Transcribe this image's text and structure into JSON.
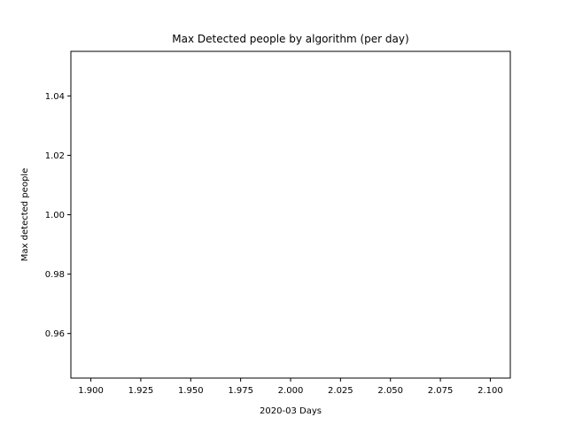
{
  "chart_data": {
    "type": "line",
    "title": "Max Detected people by algorithm (per day)",
    "xlabel": "2020-03 Days",
    "ylabel": "Max detected people",
    "xlim": [
      1.89,
      2.11
    ],
    "ylim": [
      0.945,
      1.055
    ],
    "xticks": [
      1.9,
      1.925,
      1.95,
      1.975,
      2.0,
      2.025,
      2.05,
      2.075,
      2.1
    ],
    "xtick_labels": [
      "1.900",
      "1.925",
      "1.950",
      "1.975",
      "2.000",
      "2.025",
      "2.050",
      "2.075",
      "2.100"
    ],
    "yticks": [
      0.96,
      0.98,
      1.0,
      1.02,
      1.04
    ],
    "ytick_labels": [
      "0.96",
      "0.98",
      "1.00",
      "1.02",
      "1.04"
    ],
    "series": [],
    "grid": false
  }
}
